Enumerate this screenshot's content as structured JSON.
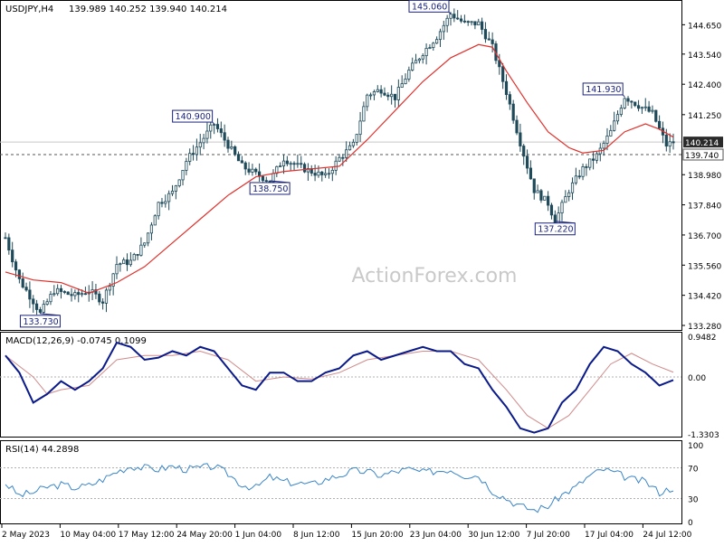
{
  "header": {
    "symbol": "USDJPY,H4",
    "ohlc": "139.989 140.252 139.940 140.214"
  },
  "watermark": "ActionForex.com",
  "colors": {
    "bg": "#ffffff",
    "candle": "#1f4a5a",
    "ma": "#e0302b",
    "macd": "#0a1a8a",
    "signal": "#d08a8a",
    "rsi": "#3a86c8",
    "grid": "#b0b0b0",
    "labelBox": "#1a237e",
    "currentBox": "#1a237e",
    "lastBox": "#2a2a2a"
  },
  "chart_data": [
    {
      "type": "candlestick",
      "title": "USDJPY,H4",
      "ylim": [
        133.28,
        145.38
      ],
      "yticks": [
        "144.650",
        "143.540",
        "142.400",
        "141.250",
        "140.214",
        "139.740",
        "138.980",
        "137.840",
        "136.700",
        "135.560",
        "134.420",
        "133.280"
      ],
      "ytick_values": [
        144.65,
        143.54,
        142.4,
        141.25,
        140.214,
        139.74,
        138.98,
        137.84,
        136.7,
        135.56,
        134.42,
        133.28
      ],
      "current_price": "140.214",
      "dashed_level": "139.740",
      "annotations": [
        {
          "label": "133.730",
          "price": 133.73
        },
        {
          "label": "140.900",
          "price": 140.9
        },
        {
          "label": "138.750",
          "price": 138.75
        },
        {
          "label": "145.060",
          "price": 145.06
        },
        {
          "label": "137.220",
          "price": 137.22
        },
        {
          "label": "141.930",
          "price": 141.93
        }
      ],
      "x_labels": [
        "2 May 2023",
        "10 May 04:00",
        "17 May 12:00",
        "24 May 20:00",
        "1 Jun 04:00",
        "8 Jun 12:00",
        "15 Jun 20:00",
        "23 Jun 04:00",
        "30 Jun 12:00",
        "7 Jul 20:00",
        "17 Jul 04:00",
        "24 Jul 12:00"
      ],
      "price_path": [
        [
          0,
          136.6
        ],
        [
          4,
          135.0
        ],
        [
          8,
          134.2
        ],
        [
          10,
          133.73
        ],
        [
          14,
          134.6
        ],
        [
          20,
          134.4
        ],
        [
          24,
          134.6
        ],
        [
          28,
          134.2
        ],
        [
          32,
          135.6
        ],
        [
          36,
          135.7
        ],
        [
          40,
          136.4
        ],
        [
          44,
          137.9
        ],
        [
          48,
          138.3
        ],
        [
          52,
          139.5
        ],
        [
          56,
          140.2
        ],
        [
          60,
          140.9
        ],
        [
          64,
          140.1
        ],
        [
          68,
          139.3
        ],
        [
          72,
          139.0
        ],
        [
          76,
          138.75
        ],
        [
          80,
          139.6
        ],
        [
          84,
          139.3
        ],
        [
          88,
          139.1
        ],
        [
          92,
          138.9
        ],
        [
          96,
          139.6
        ],
        [
          100,
          140.1
        ],
        [
          104,
          142.0
        ],
        [
          108,
          142.2
        ],
        [
          112,
          141.9
        ],
        [
          116,
          142.9
        ],
        [
          120,
          143.6
        ],
        [
          124,
          144.2
        ],
        [
          128,
          145.06
        ],
        [
          132,
          144.7
        ],
        [
          136,
          144.7
        ],
        [
          140,
          143.8
        ],
        [
          144,
          142.1
        ],
        [
          148,
          140.2
        ],
        [
          152,
          138.4
        ],
        [
          156,
          137.9
        ],
        [
          158,
          137.22
        ],
        [
          162,
          138.4
        ],
        [
          166,
          139.2
        ],
        [
          170,
          139.7
        ],
        [
          174,
          140.6
        ],
        [
          178,
          141.93
        ],
        [
          182,
          141.6
        ],
        [
          186,
          141.3
        ],
        [
          190,
          140.1
        ],
        [
          192,
          140.214
        ]
      ],
      "ma_path": [
        [
          0,
          135.3
        ],
        [
          8,
          135.0
        ],
        [
          16,
          134.9
        ],
        [
          24,
          134.5
        ],
        [
          32,
          134.9
        ],
        [
          40,
          135.5
        ],
        [
          48,
          136.4
        ],
        [
          56,
          137.3
        ],
        [
          64,
          138.2
        ],
        [
          72,
          138.9
        ],
        [
          80,
          139.1
        ],
        [
          88,
          139.2
        ],
        [
          96,
          139.3
        ],
        [
          104,
          140.3
        ],
        [
          112,
          141.4
        ],
        [
          120,
          142.5
        ],
        [
          128,
          143.4
        ],
        [
          136,
          143.9
        ],
        [
          140,
          143.8
        ],
        [
          144,
          142.9
        ],
        [
          150,
          141.7
        ],
        [
          156,
          140.6
        ],
        [
          162,
          140.0
        ],
        [
          166,
          139.8
        ],
        [
          172,
          139.9
        ],
        [
          178,
          140.6
        ],
        [
          184,
          140.9
        ],
        [
          188,
          140.7
        ],
        [
          192,
          140.4
        ]
      ]
    },
    {
      "type": "line",
      "title": "MACD(12,26,9) -0.0745 0.1099",
      "ylim": [
        -1.3303,
        0.9482
      ],
      "yticks": [
        "0.9482",
        "0.00",
        "-1.3303"
      ],
      "ytick_values": [
        0.9482,
        0.0,
        -1.3303
      ],
      "zero_level": "0.00",
      "series": [
        {
          "name": "MACD",
          "points": [
            [
              0,
              0.5
            ],
            [
              4,
              0.1
            ],
            [
              8,
              -0.6
            ],
            [
              12,
              -0.4
            ],
            [
              16,
              -0.1
            ],
            [
              20,
              -0.3
            ],
            [
              24,
              -0.1
            ],
            [
              28,
              0.2
            ],
            [
              32,
              0.8
            ],
            [
              36,
              0.7
            ],
            [
              40,
              0.4
            ],
            [
              44,
              0.45
            ],
            [
              48,
              0.6
            ],
            [
              52,
              0.5
            ],
            [
              56,
              0.7
            ],
            [
              60,
              0.6
            ],
            [
              64,
              0.2
            ],
            [
              68,
              -0.2
            ],
            [
              72,
              -0.3
            ],
            [
              76,
              0.1
            ],
            [
              80,
              0.1
            ],
            [
              84,
              -0.1
            ],
            [
              88,
              -0.1
            ],
            [
              92,
              0.1
            ],
            [
              96,
              0.2
            ],
            [
              100,
              0.5
            ],
            [
              104,
              0.6
            ],
            [
              108,
              0.4
            ],
            [
              112,
              0.5
            ],
            [
              116,
              0.6
            ],
            [
              120,
              0.7
            ],
            [
              124,
              0.6
            ],
            [
              128,
              0.6
            ],
            [
              132,
              0.3
            ],
            [
              136,
              0.2
            ],
            [
              140,
              -0.3
            ],
            [
              144,
              -0.7
            ],
            [
              148,
              -1.2
            ],
            [
              152,
              -1.3
            ],
            [
              156,
              -1.2
            ],
            [
              160,
              -0.6
            ],
            [
              164,
              -0.3
            ],
            [
              168,
              0.3
            ],
            [
              172,
              0.7
            ],
            [
              176,
              0.6
            ],
            [
              180,
              0.3
            ],
            [
              184,
              0.1
            ],
            [
              188,
              -0.2
            ],
            [
              192,
              -0.0745
            ]
          ]
        },
        {
          "name": "Signal",
          "points": [
            [
              0,
              0.5
            ],
            [
              8,
              0.0
            ],
            [
              12,
              -0.4
            ],
            [
              16,
              -0.3
            ],
            [
              24,
              -0.2
            ],
            [
              32,
              0.4
            ],
            [
              40,
              0.5
            ],
            [
              48,
              0.5
            ],
            [
              56,
              0.6
            ],
            [
              64,
              0.4
            ],
            [
              72,
              -0.1
            ],
            [
              80,
              0.0
            ],
            [
              88,
              -0.05
            ],
            [
              96,
              0.1
            ],
            [
              104,
              0.4
            ],
            [
              112,
              0.5
            ],
            [
              120,
              0.6
            ],
            [
              128,
              0.6
            ],
            [
              136,
              0.4
            ],
            [
              144,
              -0.3
            ],
            [
              150,
              -0.9
            ],
            [
              156,
              -1.2
            ],
            [
              162,
              -0.9
            ],
            [
              168,
              -0.3
            ],
            [
              174,
              0.3
            ],
            [
              180,
              0.55
            ],
            [
              186,
              0.3
            ],
            [
              192,
              0.1099
            ]
          ]
        }
      ]
    },
    {
      "type": "line",
      "title": "RSI(14) 44.2898",
      "ylim": [
        0,
        100
      ],
      "yticks": [
        "100",
        "70",
        "30",
        "0"
      ],
      "ytick_values": [
        100,
        70,
        30,
        0
      ],
      "levels": [
        70,
        30
      ],
      "series": [
        {
          "name": "RSI(14)",
          "points": [
            [
              0,
              50
            ],
            [
              4,
              34
            ],
            [
              8,
              38
            ],
            [
              12,
              45
            ],
            [
              16,
              48
            ],
            [
              20,
              44
            ],
            [
              24,
              47
            ],
            [
              28,
              55
            ],
            [
              32,
              65
            ],
            [
              36,
              72
            ],
            [
              40,
              70
            ],
            [
              44,
              68
            ],
            [
              48,
              72
            ],
            [
              52,
              68
            ],
            [
              56,
              70
            ],
            [
              60,
              72
            ],
            [
              64,
              62
            ],
            [
              68,
              48
            ],
            [
              72,
              44
            ],
            [
              76,
              58
            ],
            [
              80,
              52
            ],
            [
              84,
              50
            ],
            [
              88,
              48
            ],
            [
              92,
              55
            ],
            [
              96,
              60
            ],
            [
              100,
              66
            ],
            [
              104,
              65
            ],
            [
              108,
              60
            ],
            [
              112,
              65
            ],
            [
              116,
              68
            ],
            [
              120,
              64
            ],
            [
              124,
              66
            ],
            [
              128,
              68
            ],
            [
              132,
              60
            ],
            [
              136,
              60
            ],
            [
              140,
              40
            ],
            [
              144,
              30
            ],
            [
              148,
              20
            ],
            [
              152,
              15
            ],
            [
              156,
              20
            ],
            [
              160,
              35
            ],
            [
              164,
              45
            ],
            [
              168,
              60
            ],
            [
              172,
              68
            ],
            [
              176,
              62
            ],
            [
              180,
              55
            ],
            [
              184,
              52
            ],
            [
              188,
              38
            ],
            [
              192,
              44.2898
            ]
          ]
        }
      ]
    }
  ]
}
